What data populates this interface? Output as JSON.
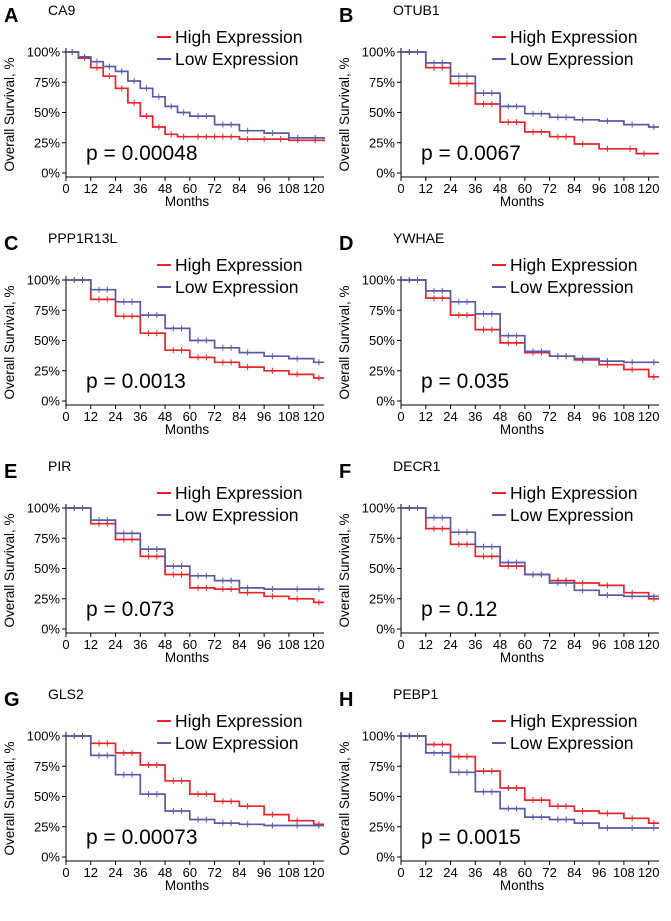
{
  "colors": {
    "high": "#e8232a",
    "low": "#5a5aa8"
  },
  "chart_data": [
    {
      "type": "line",
      "panel": "A",
      "title": "CA9",
      "xlabel": "Months",
      "ylabel": "Overall Survival, %",
      "xticks": [
        0,
        12,
        24,
        36,
        48,
        60,
        72,
        84,
        96,
        108,
        120
      ],
      "yticks": [
        "0%",
        "25%",
        "50%",
        "75%",
        "100%"
      ],
      "xlim": [
        0,
        125
      ],
      "ylim": [
        0,
        1
      ],
      "pvalue": "p = 0.00048",
      "legend": [
        "High Expression",
        "Low Expression"
      ],
      "series": [
        {
          "name": "High Expression",
          "x": [
            0,
            6,
            12,
            18,
            24,
            30,
            36,
            42,
            48,
            54,
            60,
            84,
            108,
            125
          ],
          "y": [
            1,
            0.95,
            0.87,
            0.8,
            0.7,
            0.58,
            0.47,
            0.38,
            0.32,
            0.3,
            0.3,
            0.28,
            0.27,
            0.26
          ]
        },
        {
          "name": "Low Expression",
          "x": [
            0,
            6,
            12,
            18,
            24,
            30,
            36,
            42,
            48,
            54,
            60,
            72,
            84,
            96,
            108,
            125
          ],
          "y": [
            1,
            0.96,
            0.92,
            0.88,
            0.84,
            0.76,
            0.7,
            0.63,
            0.55,
            0.5,
            0.47,
            0.4,
            0.35,
            0.33,
            0.29,
            0.28
          ]
        }
      ]
    },
    {
      "type": "line",
      "panel": "B",
      "title": "OTUB1",
      "xlabel": "Months",
      "ylabel": "Overall Survival, %",
      "xticks": [
        0,
        12,
        24,
        36,
        48,
        60,
        72,
        84,
        96,
        108,
        120
      ],
      "yticks": [
        "0%",
        "25%",
        "50%",
        "75%",
        "100%"
      ],
      "xlim": [
        0,
        125
      ],
      "ylim": [
        0,
        1
      ],
      "pvalue": "p = 0.0067",
      "legend": [
        "High Expression",
        "Low Expression"
      ],
      "series": [
        {
          "name": "High Expression",
          "x": [
            0,
            12,
            24,
            36,
            48,
            60,
            72,
            84,
            96,
            108,
            114,
            125
          ],
          "y": [
            1,
            0.87,
            0.74,
            0.57,
            0.42,
            0.34,
            0.3,
            0.24,
            0.2,
            0.2,
            0.16,
            0.16
          ]
        },
        {
          "name": "Low Expression",
          "x": [
            0,
            12,
            24,
            36,
            48,
            60,
            72,
            84,
            96,
            108,
            120,
            125
          ],
          "y": [
            1,
            0.91,
            0.8,
            0.66,
            0.55,
            0.49,
            0.46,
            0.44,
            0.43,
            0.4,
            0.38,
            0.38
          ]
        }
      ]
    },
    {
      "type": "line",
      "panel": "C",
      "title": "PPP1R13L",
      "xlabel": "Months",
      "ylabel": "Overall Survival, %",
      "xticks": [
        0,
        12,
        24,
        36,
        48,
        60,
        72,
        84,
        96,
        108,
        120
      ],
      "yticks": [
        "0%",
        "25%",
        "50%",
        "75%",
        "100%"
      ],
      "xlim": [
        0,
        125
      ],
      "ylim": [
        0,
        1
      ],
      "pvalue": "p = 0.0013",
      "legend": [
        "High Expression",
        "Low Expression"
      ],
      "series": [
        {
          "name": "High Expression",
          "x": [
            0,
            12,
            24,
            36,
            48,
            60,
            72,
            84,
            96,
            108,
            120,
            125
          ],
          "y": [
            1,
            0.84,
            0.7,
            0.56,
            0.42,
            0.36,
            0.32,
            0.28,
            0.25,
            0.22,
            0.19,
            0.19
          ]
        },
        {
          "name": "Low Expression",
          "x": [
            0,
            12,
            24,
            36,
            48,
            60,
            72,
            84,
            96,
            108,
            120,
            125
          ],
          "y": [
            1,
            0.92,
            0.82,
            0.71,
            0.6,
            0.5,
            0.44,
            0.4,
            0.37,
            0.35,
            0.32,
            0.32
          ]
        }
      ]
    },
    {
      "type": "line",
      "panel": "D",
      "title": "YWHAE",
      "xlabel": "Months",
      "ylabel": "Overall Survival, %",
      "xticks": [
        0,
        12,
        24,
        36,
        48,
        60,
        72,
        84,
        96,
        108,
        120
      ],
      "yticks": [
        "0%",
        "25%",
        "50%",
        "75%",
        "100%"
      ],
      "xlim": [
        0,
        125
      ],
      "ylim": [
        0,
        1
      ],
      "pvalue": "p = 0.035",
      "legend": [
        "High Expression",
        "Low Expression"
      ],
      "series": [
        {
          "name": "High Expression",
          "x": [
            0,
            12,
            24,
            36,
            48,
            60,
            72,
            84,
            96,
            108,
            120,
            125
          ],
          "y": [
            1,
            0.85,
            0.71,
            0.59,
            0.48,
            0.4,
            0.37,
            0.34,
            0.3,
            0.26,
            0.2,
            0.2
          ]
        },
        {
          "name": "Low Expression",
          "x": [
            0,
            12,
            24,
            36,
            48,
            60,
            72,
            84,
            96,
            108,
            120,
            125
          ],
          "y": [
            1,
            0.91,
            0.82,
            0.72,
            0.54,
            0.41,
            0.37,
            0.35,
            0.33,
            0.32,
            0.32,
            0.32
          ]
        }
      ]
    },
    {
      "type": "line",
      "panel": "E",
      "title": "PIR",
      "xlabel": "Months",
      "ylabel": "Overall Survival, %",
      "xticks": [
        0,
        12,
        24,
        36,
        48,
        60,
        72,
        84,
        96,
        108,
        120
      ],
      "yticks": [
        "0%",
        "25%",
        "50%",
        "75%",
        "100%"
      ],
      "xlim": [
        0,
        125
      ],
      "ylim": [
        0,
        1
      ],
      "pvalue": "p = 0.073",
      "legend": [
        "High Expression",
        "Low Expression"
      ],
      "series": [
        {
          "name": "High Expression",
          "x": [
            0,
            12,
            24,
            36,
            48,
            60,
            72,
            84,
            96,
            108,
            120,
            125
          ],
          "y": [
            1,
            0.87,
            0.74,
            0.6,
            0.45,
            0.34,
            0.33,
            0.3,
            0.27,
            0.25,
            0.22,
            0.22
          ]
        },
        {
          "name": "Low Expression",
          "x": [
            0,
            12,
            24,
            36,
            48,
            60,
            72,
            84,
            96,
            108,
            120,
            125
          ],
          "y": [
            1,
            0.9,
            0.79,
            0.66,
            0.52,
            0.44,
            0.4,
            0.34,
            0.33,
            0.33,
            0.33,
            0.33
          ]
        }
      ]
    },
    {
      "type": "line",
      "panel": "F",
      "title": "DECR1",
      "xlabel": "Months",
      "ylabel": "Overall Survival, %",
      "xticks": [
        0,
        12,
        24,
        36,
        48,
        60,
        72,
        84,
        96,
        108,
        120
      ],
      "yticks": [
        "0%",
        "25%",
        "50%",
        "75%",
        "100%"
      ],
      "xlim": [
        0,
        125
      ],
      "ylim": [
        0,
        1
      ],
      "pvalue": "p = 0.12",
      "legend": [
        "High Expression",
        "Low Expression"
      ],
      "series": [
        {
          "name": "High Expression",
          "x": [
            0,
            12,
            24,
            36,
            48,
            60,
            72,
            84,
            96,
            108,
            120,
            125
          ],
          "y": [
            1,
            0.83,
            0.7,
            0.6,
            0.52,
            0.45,
            0.4,
            0.38,
            0.36,
            0.3,
            0.25,
            0.25
          ]
        },
        {
          "name": "Low Expression",
          "x": [
            0,
            12,
            24,
            36,
            48,
            60,
            72,
            84,
            96,
            108,
            120,
            125
          ],
          "y": [
            1,
            0.92,
            0.8,
            0.68,
            0.55,
            0.45,
            0.38,
            0.32,
            0.28,
            0.27,
            0.27,
            0.27
          ]
        }
      ]
    },
    {
      "type": "line",
      "panel": "G",
      "title": "GLS2",
      "xlabel": "Months",
      "ylabel": "Overall Survival, %",
      "xticks": [
        0,
        12,
        24,
        36,
        48,
        60,
        72,
        84,
        96,
        108,
        120
      ],
      "yticks": [
        "0%",
        "25%",
        "50%",
        "75%",
        "100%"
      ],
      "xlim": [
        0,
        125
      ],
      "ylim": [
        0,
        1
      ],
      "pvalue": "p = 0.00073",
      "legend": [
        "High Expression",
        "Low Expression"
      ],
      "series": [
        {
          "name": "High Expression",
          "x": [
            0,
            12,
            24,
            36,
            48,
            60,
            72,
            84,
            96,
            108,
            120,
            125
          ],
          "y": [
            1,
            0.94,
            0.86,
            0.76,
            0.63,
            0.52,
            0.46,
            0.42,
            0.35,
            0.3,
            0.27,
            0.27
          ]
        },
        {
          "name": "Low Expression",
          "x": [
            0,
            12,
            24,
            36,
            48,
            60,
            72,
            84,
            96,
            108,
            120,
            125
          ],
          "y": [
            1,
            0.84,
            0.68,
            0.52,
            0.38,
            0.31,
            0.28,
            0.27,
            0.26,
            0.26,
            0.26,
            0.26
          ]
        }
      ]
    },
    {
      "type": "line",
      "panel": "H",
      "title": "PEBP1",
      "xlabel": "Months",
      "ylabel": "Overall Survival, %",
      "xticks": [
        0,
        12,
        24,
        36,
        48,
        60,
        72,
        84,
        96,
        108,
        120
      ],
      "yticks": [
        "0%",
        "25%",
        "50%",
        "75%",
        "100%"
      ],
      "xlim": [
        0,
        125
      ],
      "ylim": [
        0,
        1
      ],
      "pvalue": "p = 0.0015",
      "legend": [
        "High Expression",
        "Low Expression"
      ],
      "series": [
        {
          "name": "High Expression",
          "x": [
            0,
            12,
            24,
            36,
            48,
            60,
            72,
            84,
            96,
            108,
            120,
            125
          ],
          "y": [
            1,
            0.93,
            0.83,
            0.71,
            0.57,
            0.47,
            0.42,
            0.38,
            0.36,
            0.32,
            0.28,
            0.28
          ]
        },
        {
          "name": "Low Expression",
          "x": [
            0,
            12,
            24,
            36,
            48,
            60,
            72,
            84,
            96,
            108,
            120,
            125
          ],
          "y": [
            1,
            0.86,
            0.7,
            0.54,
            0.4,
            0.33,
            0.31,
            0.28,
            0.24,
            0.24,
            0.24,
            0.24
          ]
        }
      ]
    }
  ]
}
